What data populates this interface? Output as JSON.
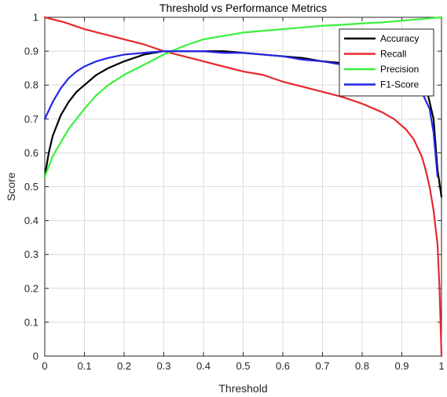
{
  "chart_data": {
    "type": "line",
    "title": "Threshold vs Performance Metrics",
    "xlabel": "Threshold",
    "ylabel": "Score",
    "xlim": [
      0,
      1
    ],
    "ylim": [
      0,
      1
    ],
    "xticks": [
      0,
      0.1,
      0.2,
      0.3,
      0.4,
      0.5,
      0.6,
      0.7,
      0.8,
      0.9,
      1
    ],
    "yticks": [
      0,
      0.1,
      0.2,
      0.3,
      0.4,
      0.5,
      0.6,
      0.7,
      0.8,
      0.9,
      1
    ],
    "xtick_labels": [
      "0",
      "0.1",
      "0.2",
      "0.3",
      "0.4",
      "0.5",
      "0.6",
      "0.7",
      "0.8",
      "0.9",
      "1"
    ],
    "ytick_labels": [
      "0",
      "0.1",
      "0.2",
      "0.3",
      "0.4",
      "0.5",
      "0.6",
      "0.7",
      "0.8",
      "0.9",
      "1"
    ],
    "grid": true,
    "legend_position": "top-right",
    "series": [
      {
        "name": "Accuracy",
        "color": "#000000",
        "x": [
          0,
          0.01,
          0.02,
          0.04,
          0.06,
          0.08,
          0.1,
          0.13,
          0.16,
          0.2,
          0.25,
          0.3,
          0.35,
          0.4,
          0.45,
          0.5,
          0.55,
          0.6,
          0.65,
          0.7,
          0.75,
          0.8,
          0.85,
          0.9,
          0.93,
          0.96,
          0.98,
          0.99,
          1.0
        ],
        "y": [
          0.53,
          0.6,
          0.65,
          0.71,
          0.75,
          0.78,
          0.8,
          0.83,
          0.85,
          0.87,
          0.89,
          0.9,
          0.9,
          0.9,
          0.9,
          0.895,
          0.89,
          0.885,
          0.88,
          0.87,
          0.865,
          0.86,
          0.85,
          0.85,
          0.84,
          0.8,
          0.7,
          0.55,
          0.47
        ]
      },
      {
        "name": "Recall",
        "color": "#e8282b",
        "x": [
          0,
          0.05,
          0.1,
          0.15,
          0.2,
          0.25,
          0.3,
          0.35,
          0.4,
          0.45,
          0.5,
          0.55,
          0.6,
          0.65,
          0.7,
          0.75,
          0.8,
          0.85,
          0.88,
          0.91,
          0.93,
          0.95,
          0.96,
          0.97,
          0.98,
          0.985,
          0.99,
          0.995,
          1.0
        ],
        "y": [
          1.0,
          0.985,
          0.965,
          0.95,
          0.935,
          0.92,
          0.9,
          0.885,
          0.87,
          0.855,
          0.84,
          0.83,
          0.81,
          0.795,
          0.78,
          0.765,
          0.745,
          0.72,
          0.7,
          0.67,
          0.64,
          0.59,
          0.55,
          0.5,
          0.43,
          0.38,
          0.33,
          0.2,
          0.0
        ]
      },
      {
        "name": "Precision",
        "color": "#3cf03c",
        "x": [
          0,
          0.01,
          0.02,
          0.04,
          0.06,
          0.08,
          0.1,
          0.13,
          0.16,
          0.2,
          0.25,
          0.3,
          0.35,
          0.4,
          0.45,
          0.5,
          0.55,
          0.6,
          0.65,
          0.7,
          0.75,
          0.8,
          0.85,
          0.9,
          0.95,
          1.0
        ],
        "y": [
          0.53,
          0.56,
          0.59,
          0.63,
          0.67,
          0.7,
          0.73,
          0.77,
          0.8,
          0.83,
          0.86,
          0.89,
          0.915,
          0.935,
          0.945,
          0.955,
          0.96,
          0.965,
          0.97,
          0.975,
          0.978,
          0.982,
          0.985,
          0.99,
          0.995,
          1.0
        ]
      },
      {
        "name": "F1-Score",
        "color": "#2424e6",
        "x": [
          0,
          0.02,
          0.04,
          0.06,
          0.08,
          0.1,
          0.13,
          0.16,
          0.2,
          0.25,
          0.3,
          0.35,
          0.4,
          0.45,
          0.5,
          0.55,
          0.6,
          0.65,
          0.7,
          0.75,
          0.8,
          0.85,
          0.9,
          0.93,
          0.95,
          0.97,
          0.98,
          0.99
        ],
        "y": [
          0.7,
          0.75,
          0.79,
          0.82,
          0.84,
          0.855,
          0.87,
          0.88,
          0.89,
          0.895,
          0.9,
          0.9,
          0.9,
          0.895,
          0.895,
          0.89,
          0.885,
          0.875,
          0.87,
          0.86,
          0.85,
          0.84,
          0.83,
          0.81,
          0.78,
          0.73,
          0.66,
          0.53
        ]
      }
    ]
  }
}
